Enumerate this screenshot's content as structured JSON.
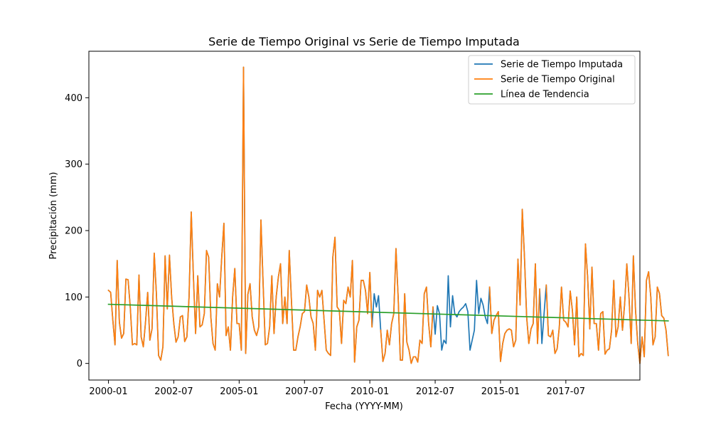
{
  "chart_data": {
    "type": "line",
    "title": "Serie de Tiempo Original vs Serie de Tiempo Imputada",
    "xlabel": "Fecha (YYYY-MM)",
    "ylabel": "Precipitación (mm)",
    "x_start": "2000-01",
    "x_frequency": "monthly",
    "xlim": [
      "1999-04",
      "2020-05"
    ],
    "ylim": [
      -25,
      470
    ],
    "x_ticks": [
      "2000-01",
      "2002-07",
      "2005-01",
      "2007-07",
      "2010-01",
      "2012-07",
      "2015-01",
      "2017-07"
    ],
    "y_ticks": [
      0,
      100,
      200,
      300,
      400
    ],
    "grid": false,
    "legend_position": "top-right",
    "series": [
      {
        "name": "Serie de Tiempo Imputada",
        "color": "#1f77b4",
        "values": [
          110,
          107,
          65,
          28,
          155,
          62,
          38,
          45,
          127,
          126,
          85,
          28,
          30,
          28,
          133,
          40,
          25,
          62,
          107,
          35,
          52,
          166,
          105,
          12,
          5,
          25,
          162,
          82,
          163,
          100,
          60,
          32,
          40,
          70,
          72,
          33,
          40,
          100,
          228,
          130,
          45,
          132,
          55,
          58,
          75,
          170,
          160,
          70,
          30,
          20,
          120,
          100,
          160,
          211,
          42,
          55,
          20,
          100,
          143,
          60,
          60,
          20,
          446,
          15,
          104,
          120,
          70,
          50,
          42,
          55,
          216,
          120,
          28,
          30,
          55,
          132,
          45,
          100,
          130,
          150,
          60,
          100,
          60,
          170,
          95,
          20,
          20,
          40,
          55,
          75,
          78,
          118,
          100,
          70,
          60,
          20,
          110,
          100,
          110,
          65,
          20,
          15,
          12,
          160,
          190,
          85,
          80,
          30,
          95,
          90,
          115,
          100,
          155,
          2,
          55,
          65,
          125,
          125,
          110,
          75,
          137,
          55,
          105,
          85,
          102,
          50,
          3,
          15,
          50,
          28,
          60,
          75,
          173,
          100,
          5,
          5,
          105,
          32,
          20,
          0,
          10,
          10,
          2,
          35,
          30,
          105,
          115,
          60,
          25,
          85,
          44,
          87,
          75,
          20,
          35,
          30,
          132,
          55,
          102,
          75,
          70,
          78,
          82,
          85,
          90,
          78,
          20,
          35,
          50,
          125,
          75,
          98,
          88,
          70,
          60,
          115,
          45,
          65,
          72,
          78,
          3,
          30,
          45,
          50,
          52,
          50,
          25,
          35,
          157,
          88,
          232,
          160,
          70,
          30,
          52,
          60,
          150,
          30,
          112,
          30,
          75,
          118,
          42,
          40,
          50,
          15,
          22,
          55,
          115,
          65,
          62,
          55,
          109,
          80,
          28,
          100,
          10,
          15,
          12,
          180,
          130,
          52,
          145,
          60,
          60,
          20,
          75,
          78,
          14,
          20,
          22,
          50,
          125,
          40,
          55,
          100,
          50,
          90,
          150,
          100,
          30,
          162,
          80,
          30,
          0,
          40,
          10,
          125,
          138,
          100,
          28,
          40,
          115,
          105,
          72,
          68,
          50,
          12
        ],
        "z": 2
      },
      {
        "name": "Serie de Tiempo Original",
        "color": "#ff7f0e",
        "values": [
          110,
          107,
          65,
          28,
          155,
          62,
          38,
          45,
          127,
          126,
          85,
          28,
          30,
          28,
          133,
          40,
          25,
          62,
          107,
          35,
          52,
          166,
          105,
          12,
          5,
          25,
          162,
          82,
          163,
          100,
          60,
          32,
          40,
          70,
          72,
          33,
          40,
          100,
          228,
          130,
          45,
          132,
          55,
          58,
          75,
          170,
          160,
          70,
          30,
          20,
          120,
          100,
          160,
          211,
          42,
          55,
          20,
          100,
          143,
          60,
          60,
          20,
          446,
          15,
          104,
          120,
          70,
          50,
          42,
          55,
          216,
          120,
          28,
          30,
          55,
          132,
          45,
          100,
          130,
          150,
          60,
          100,
          60,
          170,
          95,
          20,
          20,
          40,
          55,
          75,
          78,
          118,
          100,
          70,
          60,
          20,
          110,
          100,
          110,
          65,
          20,
          15,
          12,
          160,
          190,
          85,
          80,
          30,
          95,
          90,
          115,
          100,
          155,
          2,
          55,
          65,
          125,
          125,
          110,
          75,
          137,
          55,
          null,
          null,
          null,
          50,
          3,
          15,
          50,
          28,
          60,
          75,
          173,
          100,
          5,
          5,
          105,
          32,
          20,
          0,
          10,
          10,
          2,
          35,
          30,
          105,
          115,
          60,
          25,
          85,
          null,
          null,
          null,
          null,
          null,
          null,
          null,
          null,
          null,
          null,
          null,
          null,
          null,
          null,
          null,
          null,
          null,
          null,
          null,
          null,
          null,
          null,
          null,
          null,
          null,
          115,
          45,
          65,
          72,
          78,
          3,
          30,
          45,
          50,
          52,
          50,
          25,
          35,
          157,
          88,
          232,
          160,
          70,
          30,
          52,
          60,
          150,
          30,
          112,
          null,
          null,
          118,
          42,
          40,
          50,
          15,
          22,
          55,
          115,
          65,
          62,
          55,
          109,
          80,
          28,
          100,
          10,
          15,
          12,
          180,
          130,
          52,
          145,
          60,
          60,
          20,
          75,
          78,
          14,
          20,
          22,
          50,
          125,
          40,
          55,
          100,
          50,
          90,
          150,
          100,
          30,
          162,
          80,
          30,
          0,
          40,
          10,
          125,
          138,
          100,
          28,
          40,
          115,
          105,
          72,
          68,
          50,
          12
        ],
        "z": 3
      },
      {
        "name": "Línea de Tendencia",
        "color": "#2ca02c",
        "trend": [
          89,
          64
        ],
        "z": 4
      }
    ]
  }
}
